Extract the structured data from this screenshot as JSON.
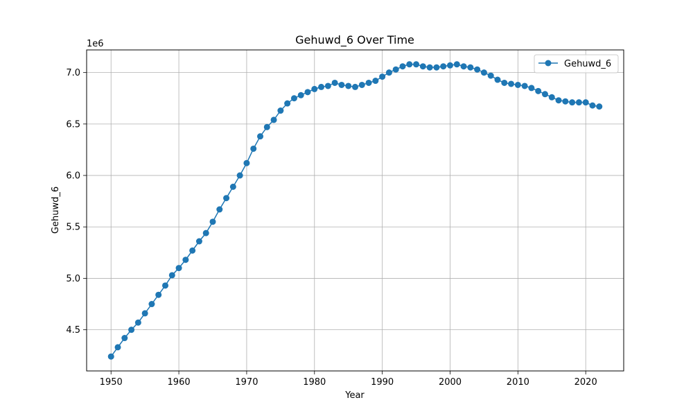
{
  "chart_data": {
    "type": "line",
    "title": "Gehuwd_6 Over Time",
    "xlabel": "Year",
    "ylabel": "Gehuwd_6",
    "offset_label": "1e6",
    "xlim": [
      1946.4,
      2025.6
    ],
    "ylim": [
      4.1,
      7.22
    ],
    "x_ticks": [
      1950,
      1960,
      1970,
      1980,
      1990,
      2000,
      2010,
      2020
    ],
    "y_ticks": [
      4.5,
      5.0,
      5.5,
      6.0,
      6.5,
      7.0
    ],
    "y_tick_labels": [
      "4.5",
      "5.0",
      "5.5",
      "6.0",
      "6.5",
      "7.0"
    ],
    "grid": true,
    "legend_position": "top-right",
    "series_color": "#1f77b4",
    "series": [
      {
        "name": "Gehuwd_6",
        "x": [
          1950,
          1951,
          1952,
          1953,
          1954,
          1955,
          1956,
          1957,
          1958,
          1959,
          1960,
          1961,
          1962,
          1963,
          1964,
          1965,
          1966,
          1967,
          1968,
          1969,
          1970,
          1971,
          1972,
          1973,
          1974,
          1975,
          1976,
          1977,
          1978,
          1979,
          1980,
          1981,
          1982,
          1983,
          1984,
          1985,
          1986,
          1987,
          1988,
          1989,
          1990,
          1991,
          1992,
          1993,
          1994,
          1995,
          1996,
          1997,
          1998,
          1999,
          2000,
          2001,
          2002,
          2003,
          2004,
          2005,
          2006,
          2007,
          2008,
          2009,
          2010,
          2011,
          2012,
          2013,
          2014,
          2015,
          2016,
          2017,
          2018,
          2019,
          2020,
          2021,
          2022
        ],
        "values": [
          4.24,
          4.33,
          4.42,
          4.5,
          4.57,
          4.66,
          4.75,
          4.84,
          4.93,
          5.03,
          5.1,
          5.18,
          5.27,
          5.36,
          5.44,
          5.55,
          5.67,
          5.78,
          5.89,
          6.0,
          6.12,
          6.26,
          6.38,
          6.47,
          6.54,
          6.63,
          6.7,
          6.75,
          6.78,
          6.81,
          6.84,
          6.86,
          6.87,
          6.9,
          6.88,
          6.87,
          6.86,
          6.88,
          6.9,
          6.92,
          6.96,
          7.0,
          7.03,
          7.06,
          7.08,
          7.08,
          7.06,
          7.05,
          7.05,
          7.06,
          7.07,
          7.08,
          7.06,
          7.05,
          7.03,
          7.0,
          6.97,
          6.93,
          6.9,
          6.89,
          6.88,
          6.87,
          6.85,
          6.82,
          6.79,
          6.76,
          6.73,
          6.72,
          6.71,
          6.71,
          6.71,
          6.68,
          6.67
        ]
      }
    ]
  }
}
